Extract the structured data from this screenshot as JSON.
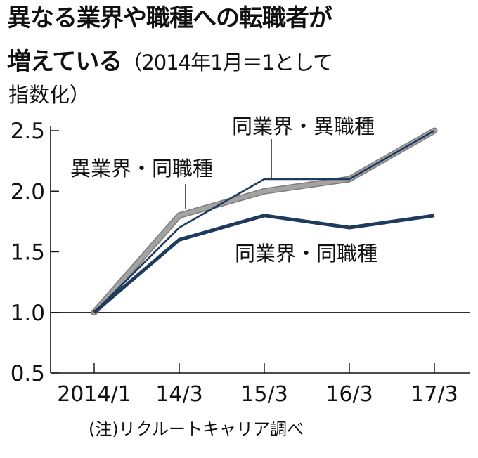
{
  "title": {
    "line1": "異なる業界や職種への転職者が",
    "line2": "増えている",
    "note": "（2014年1月＝1として",
    "note2": "指数化）"
  },
  "source": "(注)リクルートキャリア調べ",
  "colors": {
    "diff_industry_same_job": "#a3a3a3",
    "same_industry_diff_job": "#1e3a5c",
    "same_industry_same_job": "#1e3a5c",
    "axis": "#111111"
  },
  "chart_data": {
    "type": "line",
    "categories": [
      "2014/1",
      "14/3",
      "15/3",
      "16/3",
      "17/3"
    ],
    "ylim": [
      0.5,
      2.5
    ],
    "yticks": [
      "0.5",
      "1.0",
      "1.5",
      "2.0",
      "2.5"
    ],
    "grid": false,
    "series": [
      {
        "name": "異業界・同職種",
        "values": [
          1.0,
          1.8,
          2.0,
          2.1,
          2.5
        ]
      },
      {
        "name": "同業界・異職種",
        "values": [
          1.0,
          1.7,
          2.1,
          2.1,
          2.5
        ]
      },
      {
        "name": "同業界・同職種",
        "values": [
          1.0,
          1.6,
          1.8,
          1.7,
          1.8
        ]
      }
    ]
  }
}
